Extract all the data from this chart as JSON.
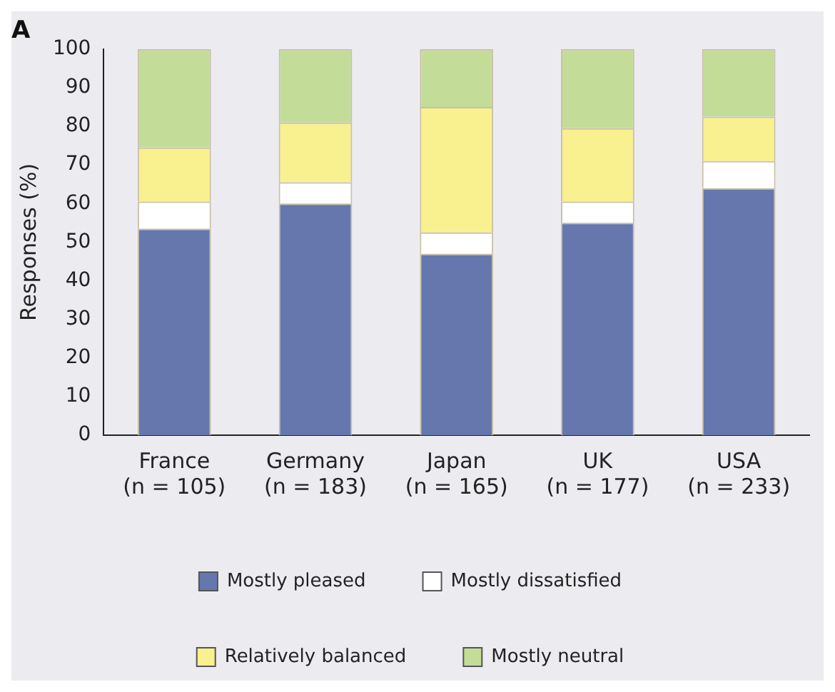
{
  "chart_data": {
    "type": "bar",
    "title": "A",
    "ylabel": "Responses (%)",
    "categories": [
      "France (n = 105)",
      "Germany (n = 183)",
      "Japan (n = 165)",
      "UK (n = 177)",
      "USA (n = 233)"
    ],
    "series": [
      {
        "name": "Mostly pleased",
        "color": "#6577ad",
        "values": [
          53.5,
          60,
          47,
          55,
          64
        ]
      },
      {
        "name": "Mostly dissatisfied",
        "color": "#ffffff",
        "values": [
          7,
          5.5,
          5.5,
          5.5,
          7
        ]
      },
      {
        "name": "Relatively balanced",
        "color": "#f9f08f",
        "values": [
          14,
          15.5,
          32.5,
          19,
          11.5
        ]
      },
      {
        "name": "Mostly neutral",
        "color": "#c3dd99",
        "values": [
          25.5,
          19,
          15,
          20.5,
          17.5
        ]
      }
    ],
    "stacked": true,
    "ylim": [
      0,
      100
    ],
    "yticks": [
      0,
      10,
      20,
      30,
      40,
      50,
      60,
      70,
      80,
      90,
      100
    ],
    "grid": false,
    "legend": "bottom"
  }
}
